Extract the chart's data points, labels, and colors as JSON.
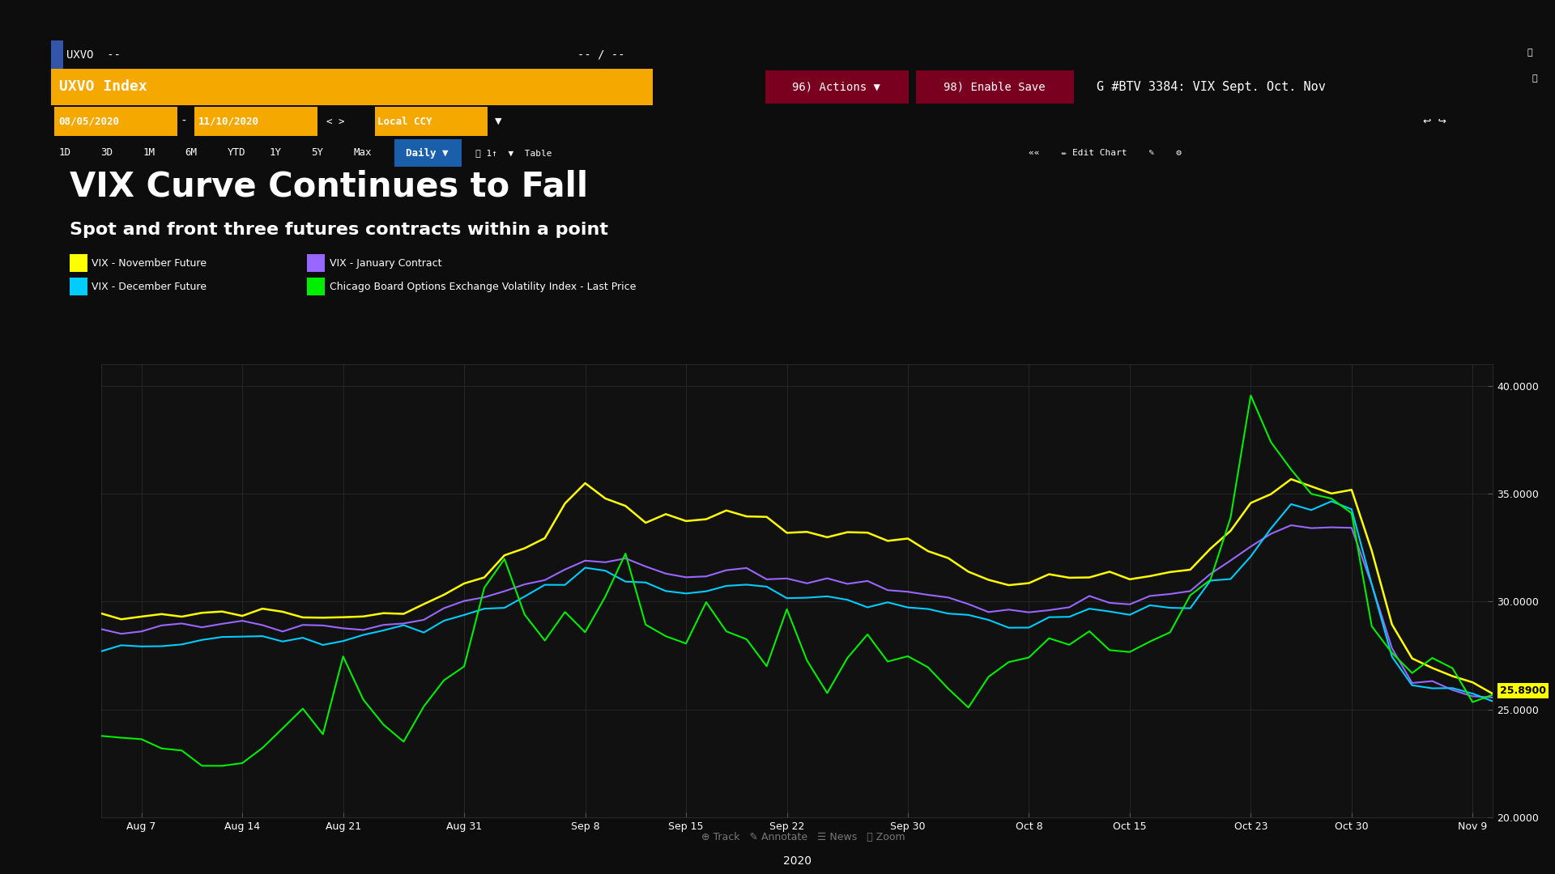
{
  "title": "VIX Curve Continues to Fall",
  "subtitle": "Spot and front three futures contracts within a point",
  "bg_color": "#0d0d0d",
  "plot_bg": "#111111",
  "orange": "#f5a800",
  "dark_red": "#7a0020",
  "blue_highlight": "#1a5faa",
  "ylim": [
    20.0,
    41.0
  ],
  "yticks": [
    20.0,
    25.0,
    30.0,
    35.0,
    40.0
  ],
  "legend_row1": [
    "VIX - November Future",
    "VIX - January Contract"
  ],
  "legend_row2": [
    "VIX - December Future",
    "Chicago Board Options Exchange Volatility Index - Last Price"
  ],
  "legend_colors_row1": [
    "#ffff00",
    "#9966ff"
  ],
  "legend_colors_row2": [
    "#00ccff",
    "#00ee00"
  ],
  "line_colors": [
    "#ffff00",
    "#9966ff",
    "#00ccff",
    "#00ee00"
  ],
  "xtick_labels": [
    "Aug 7",
    "Aug 14",
    "Aug 21",
    "Aug 31",
    "Sep 8",
    "Sep 15",
    "Sep 22",
    "Sep 30",
    "Oct 8",
    "Oct 15",
    "Oct 23",
    "Oct 30",
    "Nov 9"
  ],
  "xlabel_center": "2020",
  "last_price_label": "25.8900",
  "sidebar_color": "#b84800"
}
